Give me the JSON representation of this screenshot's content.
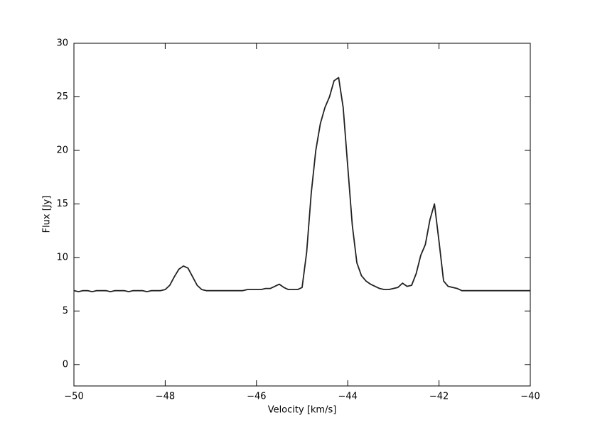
{
  "chart_data": {
    "type": "line",
    "x_label": "Velocity [km/s]",
    "y_label": "Flux [Jy]",
    "x": [
      -50.0,
      -49.9,
      -49.8,
      -49.7,
      -49.6,
      -49.5,
      -49.4,
      -49.3,
      -49.2,
      -49.1,
      -49.0,
      -48.9,
      -48.8,
      -48.7,
      -48.6,
      -48.5,
      -48.4,
      -48.3,
      -48.2,
      -48.1,
      -48.0,
      -47.9,
      -47.8,
      -47.7,
      -47.6,
      -47.5,
      -47.4,
      -47.3,
      -47.2,
      -47.1,
      -47.0,
      -46.9,
      -46.8,
      -46.7,
      -46.6,
      -46.5,
      -46.4,
      -46.3,
      -46.2,
      -46.1,
      -46.0,
      -45.9,
      -45.8,
      -45.7,
      -45.6,
      -45.5,
      -45.4,
      -45.3,
      -45.2,
      -45.1,
      -45.0,
      -44.9,
      -44.8,
      -44.7,
      -44.6,
      -44.5,
      -44.4,
      -44.3,
      -44.2,
      -44.1,
      -44.0,
      -43.9,
      -43.8,
      -43.7,
      -43.6,
      -43.5,
      -43.4,
      -43.3,
      -43.2,
      -43.1,
      -43.0,
      -42.9,
      -42.8,
      -42.7,
      -42.6,
      -42.5,
      -42.4,
      -42.3,
      -42.2,
      -42.1,
      -42.0,
      -41.9,
      -41.8,
      -41.7,
      -41.6,
      -41.5,
      -41.4,
      -41.3,
      -41.2,
      -41.1,
      -41.0,
      -40.9,
      -40.8,
      -40.7,
      -40.6,
      -40.5,
      -40.4,
      -40.3,
      -40.2,
      -40.1,
      -40.0
    ],
    "series": [
      {
        "color": "#222222",
        "values": [
          6.9,
          6.8,
          6.9,
          6.9,
          6.8,
          6.9,
          6.9,
          6.9,
          6.8,
          6.9,
          6.9,
          6.9,
          6.8,
          6.9,
          6.9,
          6.9,
          6.8,
          6.9,
          6.9,
          6.9,
          7.0,
          7.4,
          8.2,
          8.9,
          9.2,
          9.0,
          8.2,
          7.4,
          7.0,
          6.9,
          6.9,
          6.9,
          6.9,
          6.9,
          6.9,
          6.9,
          6.9,
          6.9,
          7.0,
          7.0,
          7.0,
          7.0,
          7.1,
          7.1,
          7.3,
          7.5,
          7.2,
          7.0,
          7.0,
          7.0,
          7.2,
          10.5,
          16,
          20,
          22.5,
          24,
          25,
          26.5,
          26.8,
          24,
          18.5,
          13,
          9.5,
          8.3,
          7.8,
          7.5,
          7.3,
          7.1,
          7.0,
          7.0,
          7.1,
          7.2,
          7.6,
          7.3,
          7.4,
          8.5,
          10.2,
          11.2,
          13.5,
          15.0,
          11.5,
          7.8,
          7.3,
          7.2,
          7.1,
          6.9,
          6.9,
          6.9,
          6.9,
          6.9,
          6.9,
          6.9,
          6.9,
          6.9,
          6.9,
          6.9,
          6.9,
          6.9,
          6.9,
          6.9,
          6.9
        ]
      }
    ],
    "xlim": [
      -50,
      -40
    ],
    "xticks": [
      {
        "value": -50,
        "label": "−50"
      },
      {
        "value": -48,
        "label": "−48"
      },
      {
        "value": -46,
        "label": "−46"
      },
      {
        "value": -44,
        "label": "−44"
      },
      {
        "value": -42,
        "label": "−42"
      },
      {
        "value": -40,
        "label": "−40"
      }
    ],
    "ylim": [
      -2,
      30
    ],
    "yticks": [
      0,
      5,
      10,
      15,
      20,
      25,
      30
    ]
  }
}
